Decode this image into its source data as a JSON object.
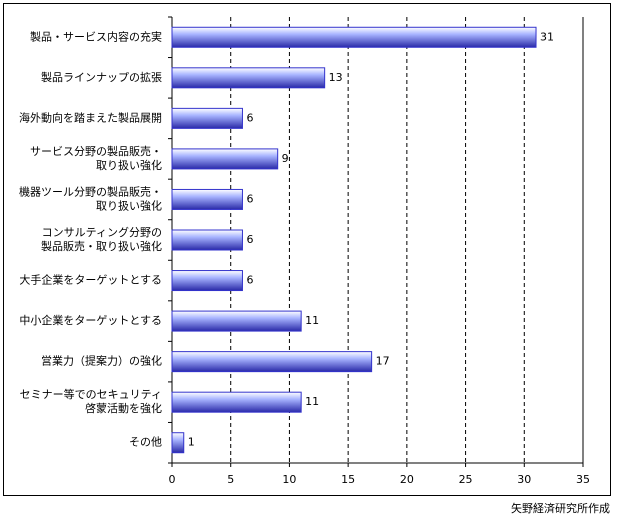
{
  "chart_data": {
    "type": "bar",
    "orientation": "horizontal",
    "categories": [
      [
        "製品・サービス内容の充実"
      ],
      [
        "製品ラインナップの拡張"
      ],
      [
        "海外動向を踏まえた製品展開"
      ],
      [
        "サービス分野の製品販売・",
        "取り扱い強化"
      ],
      [
        "機器ツール分野の製品販売・",
        "取り扱い強化"
      ],
      [
        "コンサルティング分野の",
        "製品販売・取り扱い強化"
      ],
      [
        "大手企業をターゲットとする"
      ],
      [
        "中小企業をターゲットとする"
      ],
      [
        "営業力（提案力）の強化"
      ],
      [
        "セミナー等でのセキュリティ",
        "啓蒙活動を強化"
      ],
      [
        "その他"
      ]
    ],
    "values": [
      31,
      13,
      6,
      9,
      6,
      6,
      6,
      11,
      17,
      11,
      1
    ],
    "color": "#3333cc",
    "xlim": [
      0,
      35
    ],
    "xticks": [
      0,
      5,
      10,
      15,
      20,
      25,
      30,
      35
    ],
    "grid": true,
    "source": "矢野経済研究所作成"
  }
}
